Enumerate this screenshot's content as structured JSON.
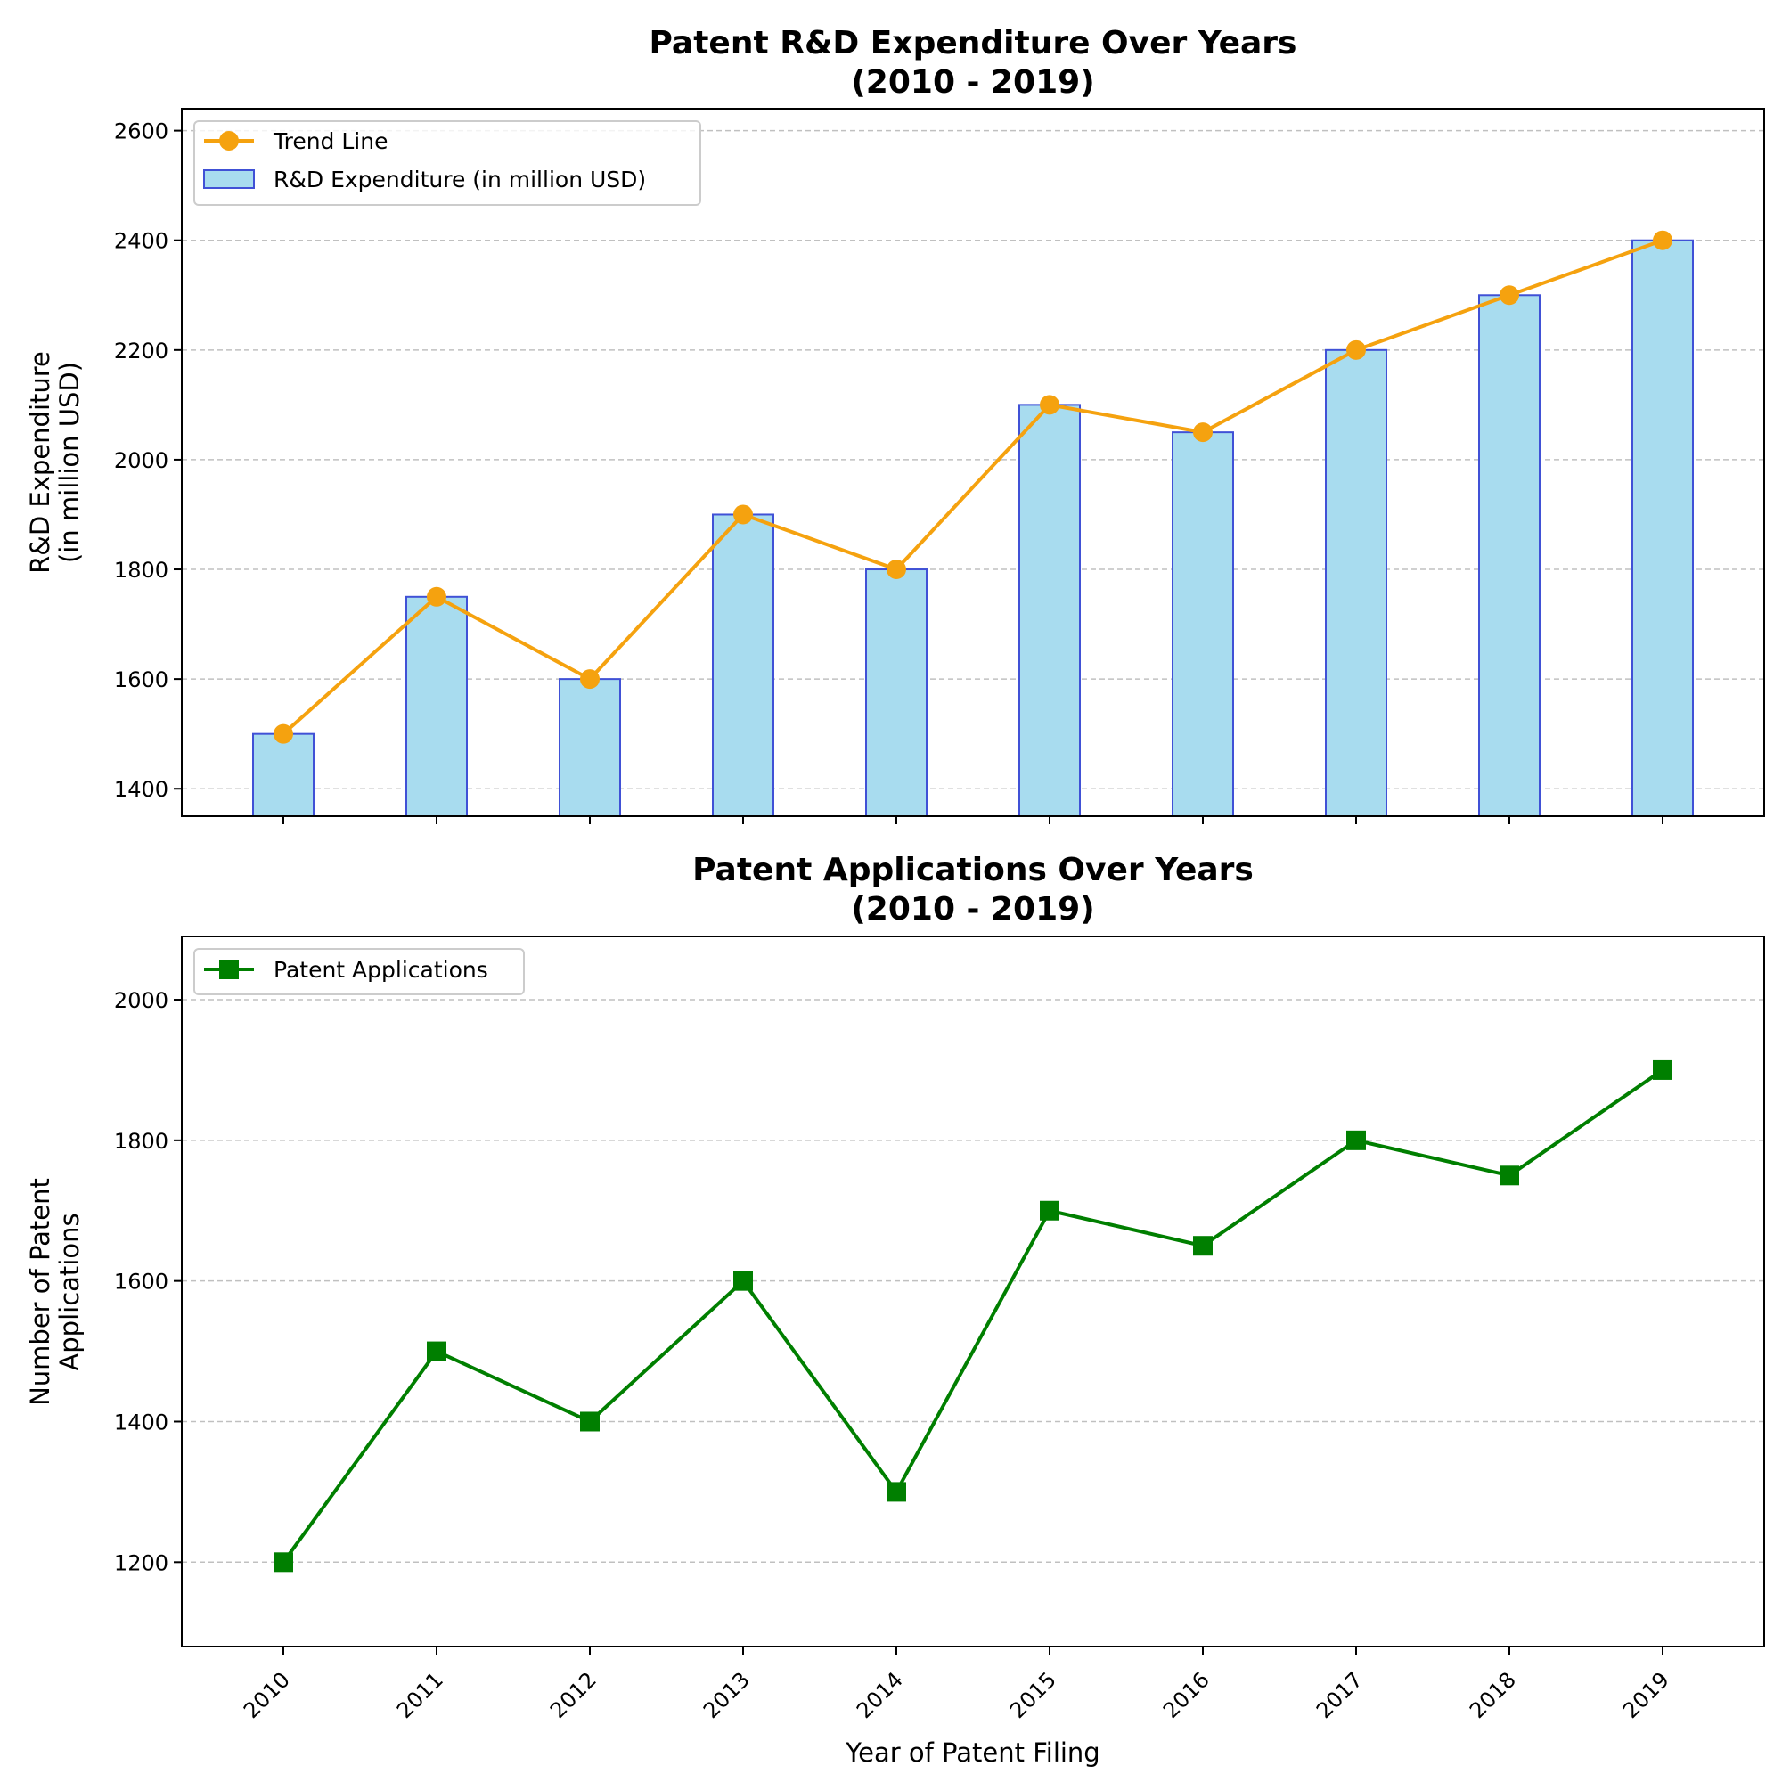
{
  "chart_data": [
    {
      "type": "bar",
      "title_line1": "Patent R&D Expenditure Over Years",
      "title_line2": "(2010 - 2019)",
      "ylabel_line1": "R&D Expenditure",
      "ylabel_line2": "(in million USD)",
      "xlabel": "",
      "x": [
        "2010",
        "2011",
        "2012",
        "2013",
        "2014",
        "2015",
        "2016",
        "2017",
        "2018",
        "2019"
      ],
      "ylim": [
        1350,
        2640
      ],
      "yticks": [
        1400,
        1600,
        1800,
        2000,
        2200,
        2400,
        2600
      ],
      "grid": "y-dashed",
      "legend_position": "top-left",
      "series": [
        {
          "name": "Trend Line",
          "kind": "line",
          "marker": "circle",
          "color": "#f5a20f",
          "values": [
            1500,
            1750,
            1600,
            1900,
            1800,
            2100,
            2050,
            2200,
            2300,
            2400
          ]
        },
        {
          "name": "R&D Expenditure (in million USD)",
          "kind": "bar",
          "color": "#a8dcef",
          "edge_color": "#4051d6",
          "values": [
            1500,
            1750,
            1600,
            1900,
            1800,
            2100,
            2050,
            2200,
            2300,
            2400
          ]
        }
      ]
    },
    {
      "type": "line",
      "title_line1": "Patent Applications Over Years",
      "title_line2": "(2010 - 2019)",
      "ylabel_line1": "Number of Patent",
      "ylabel_line2": "Applications",
      "xlabel": "Year of Patent Filing",
      "x": [
        "2010",
        "2011",
        "2012",
        "2013",
        "2014",
        "2015",
        "2016",
        "2017",
        "2018",
        "2019"
      ],
      "ylim": [
        1080,
        2090
      ],
      "yticks": [
        1200,
        1400,
        1600,
        1800,
        2000
      ],
      "grid": "y-dashed",
      "legend_position": "top-left",
      "series": [
        {
          "name": "Patent Applications",
          "kind": "line",
          "marker": "square",
          "color": "#007f00",
          "values": [
            1200,
            1500,
            1400,
            1600,
            1300,
            1700,
            1650,
            1800,
            1750,
            1900
          ]
        }
      ]
    }
  ]
}
